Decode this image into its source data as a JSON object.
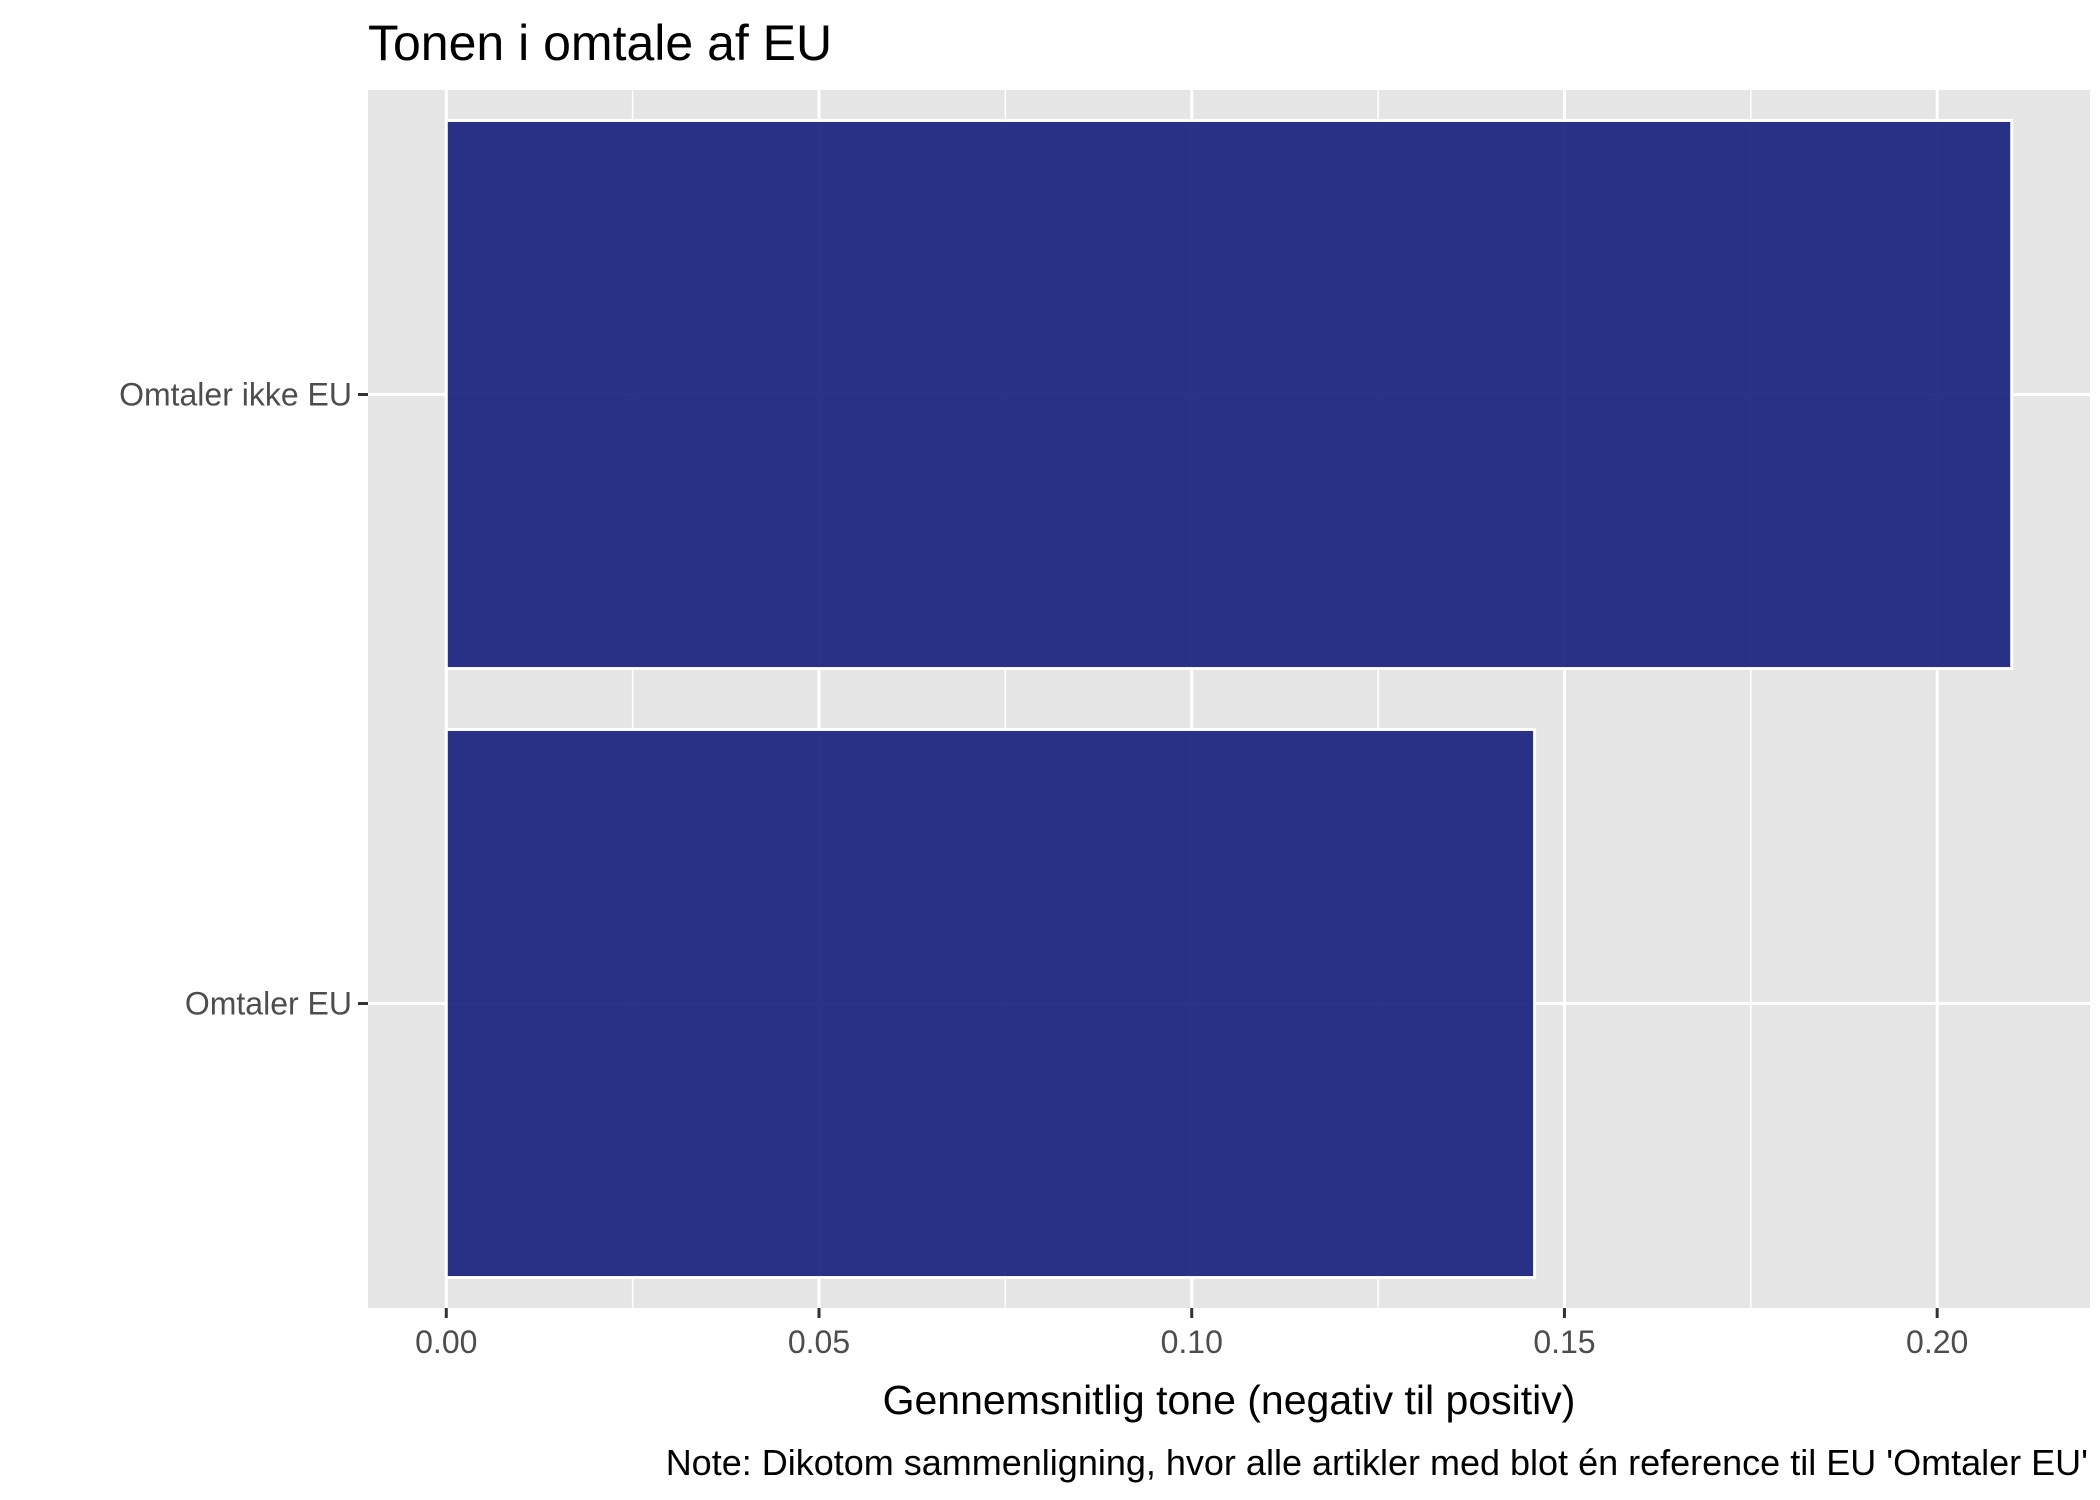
{
  "chart_data": {
    "type": "bar",
    "orientation": "horizontal",
    "title": "Tonen i omtale af EU",
    "xlabel": "Gennemsnitlig tone (negativ til positiv)",
    "ylabel": "",
    "caption": "Note: Dikotom sammenligning, hvor alle artikler med blot én reference til EU 'Omtaler EU'",
    "categories": [
      "Omtaler ikke EU",
      "Omtaler EU"
    ],
    "values": [
      0.21,
      0.146
    ],
    "xlim": [
      -0.0105,
      0.2205
    ],
    "x_ticks": [
      "0.00",
      "0.05",
      "0.10",
      "0.15",
      "0.20"
    ],
    "x_tick_values": [
      0.0,
      0.05,
      0.1,
      0.15,
      0.2
    ],
    "x_minor_values": [
      0.025,
      0.075,
      0.125,
      0.175
    ],
    "grid": true,
    "colors": {
      "bar_fill": "#1a237e",
      "bar_outline": "#ffffff",
      "panel_background": "#e5e5e5",
      "grid": "#ffffff",
      "tick_text": "#4d4d4d"
    }
  }
}
